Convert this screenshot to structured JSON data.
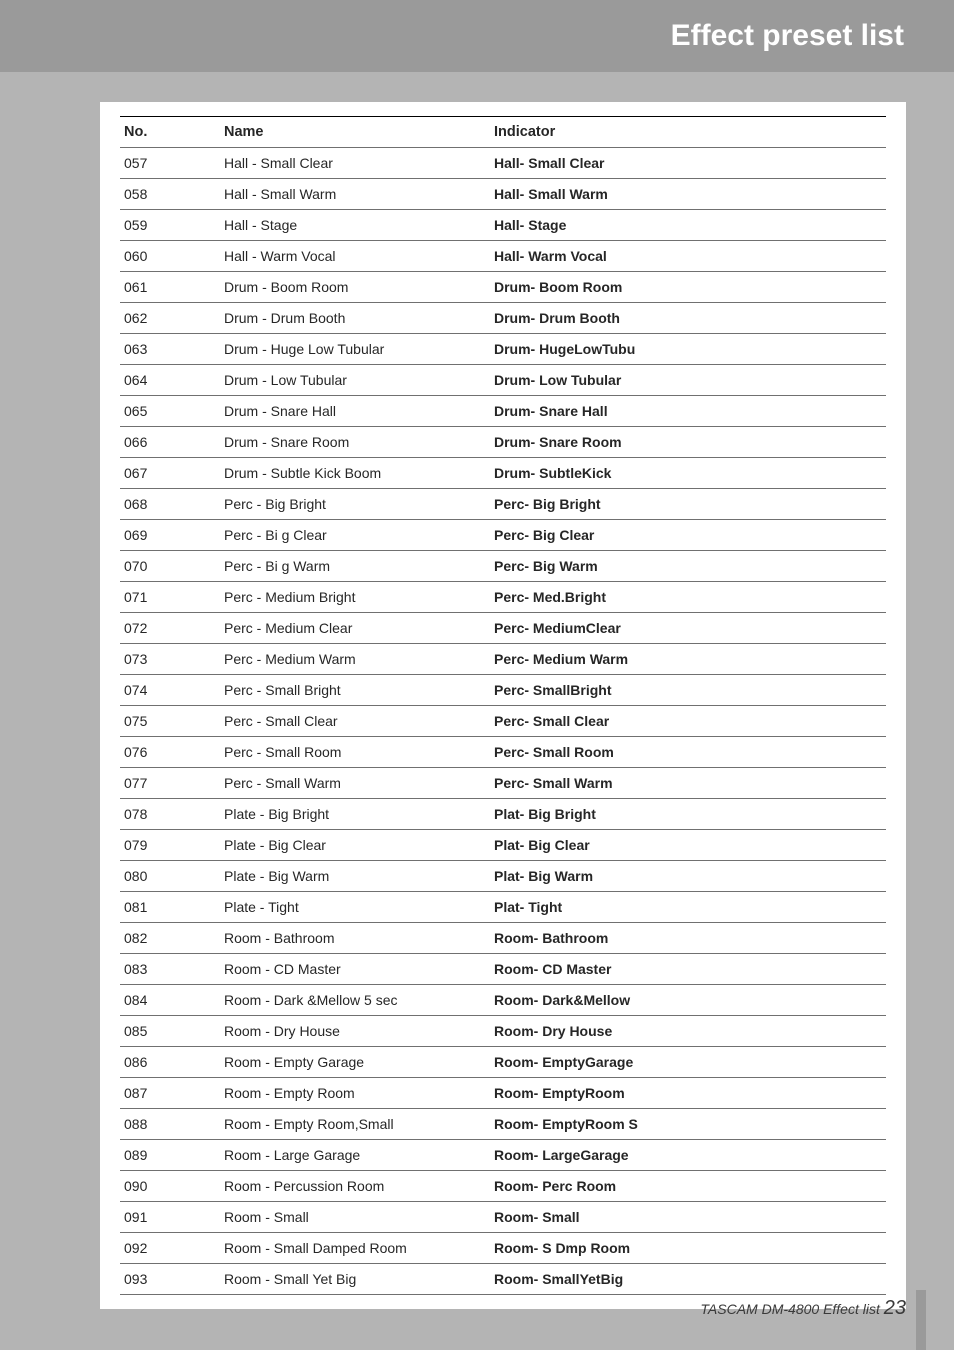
{
  "header": {
    "title": "Effect preset list"
  },
  "table": {
    "columns": [
      {
        "key": "no",
        "label": "No."
      },
      {
        "key": "name",
        "label": "Name"
      },
      {
        "key": "indicator",
        "label": "Indicator"
      }
    ],
    "rows": [
      {
        "no": "057",
        "name": "Hall - Small Clear",
        "indicator": "Hall- Small Clear"
      },
      {
        "no": "058",
        "name": "Hall - Small Warm",
        "indicator": "Hall- Small Warm"
      },
      {
        "no": "059",
        "name": "Hall - Stage",
        "indicator": "Hall- Stage"
      },
      {
        "no": "060",
        "name": "Hall - Warm Vocal",
        "indicator": "Hall- Warm Vocal"
      },
      {
        "no": "061",
        "name": "Drum - Boom Room",
        "indicator": "Drum- Boom Room"
      },
      {
        "no": "062",
        "name": "Drum - Drum Booth",
        "indicator": "Drum- Drum Booth"
      },
      {
        "no": "063",
        "name": "Drum - Huge Low Tubular",
        "indicator": "Drum- HugeLowTubu"
      },
      {
        "no": "064",
        "name": "Drum - Low Tubular",
        "indicator": "Drum- Low Tubular"
      },
      {
        "no": "065",
        "name": "Drum - Snare Hall",
        "indicator": "Drum- Snare Hall"
      },
      {
        "no": "066",
        "name": "Drum - Snare Room",
        "indicator": "Drum- Snare Room"
      },
      {
        "no": "067",
        "name": "Drum - Subtle Kick Boom",
        "indicator": "Drum- SubtleKick"
      },
      {
        "no": "068",
        "name": "Perc - Big Bright",
        "indicator": "Perc- Big Bright"
      },
      {
        "no": "069",
        "name": "Perc - Bi g Clear",
        "indicator": "Perc- Big Clear"
      },
      {
        "no": "070",
        "name": "Perc - Bi g Warm",
        "indicator": "Perc- Big Warm"
      },
      {
        "no": "071",
        "name": "Perc - Medium Bright",
        "indicator": "Perc- Med.Bright"
      },
      {
        "no": "072",
        "name": "Perc - Medium Clear",
        "indicator": "Perc- MediumClear"
      },
      {
        "no": "073",
        "name": "Perc - Medium Warm",
        "indicator": "Perc- Medium Warm"
      },
      {
        "no": "074",
        "name": "Perc - Small Bright",
        "indicator": "Perc- SmallBright"
      },
      {
        "no": "075",
        "name": "Perc - Small Clear",
        "indicator": "Perc- Small Clear"
      },
      {
        "no": "076",
        "name": "Perc - Small Room",
        "indicator": "Perc- Small Room"
      },
      {
        "no": "077",
        "name": "Perc - Small Warm",
        "indicator": "Perc- Small Warm"
      },
      {
        "no": "078",
        "name": "Plate - Big Bright",
        "indicator": "Plat- Big Bright"
      },
      {
        "no": "079",
        "name": "Plate - Big Clear",
        "indicator": "Plat- Big Clear"
      },
      {
        "no": "080",
        "name": "Plate - Big Warm",
        "indicator": "Plat- Big Warm"
      },
      {
        "no": "081",
        "name": "Plate - Tight",
        "indicator": "Plat- Tight"
      },
      {
        "no": "082",
        "name": "Room - Bathroom",
        "indicator": "Room- Bathroom"
      },
      {
        "no": "083",
        "name": "Room - CD Master",
        "indicator": "Room- CD Master"
      },
      {
        "no": "084",
        "name": "Room - Dark &Mellow 5 sec",
        "indicator": "Room- Dark&Mellow"
      },
      {
        "no": "085",
        "name": "Room - Dry House",
        "indicator": "Room- Dry House"
      },
      {
        "no": "086",
        "name": "Room - Empty Garage",
        "indicator": "Room- EmptyGarage"
      },
      {
        "no": "087",
        "name": "Room - Empty Room",
        "indicator": "Room- EmptyRoom"
      },
      {
        "no": "088",
        "name": "Room - Empty Room,Small",
        "indicator": "Room- EmptyRoom S"
      },
      {
        "no": "089",
        "name": "Room - Large Garage",
        "indicator": "Room- LargeGarage"
      },
      {
        "no": "090",
        "name": "Room - Percussion Room",
        "indicator": "Room- Perc Room"
      },
      {
        "no": "091",
        "name": "Room - Small",
        "indicator": "Room- Small"
      },
      {
        "no": "092",
        "name": "Room - Small Damped Room",
        "indicator": "Room- S Dmp Room"
      },
      {
        "no": "093",
        "name": "Room - Small Yet Big",
        "indicator": "Room- SmallYetBig"
      }
    ]
  },
  "footer": {
    "text": "TASCAM DM-4800 Effect list",
    "page": "23"
  }
}
